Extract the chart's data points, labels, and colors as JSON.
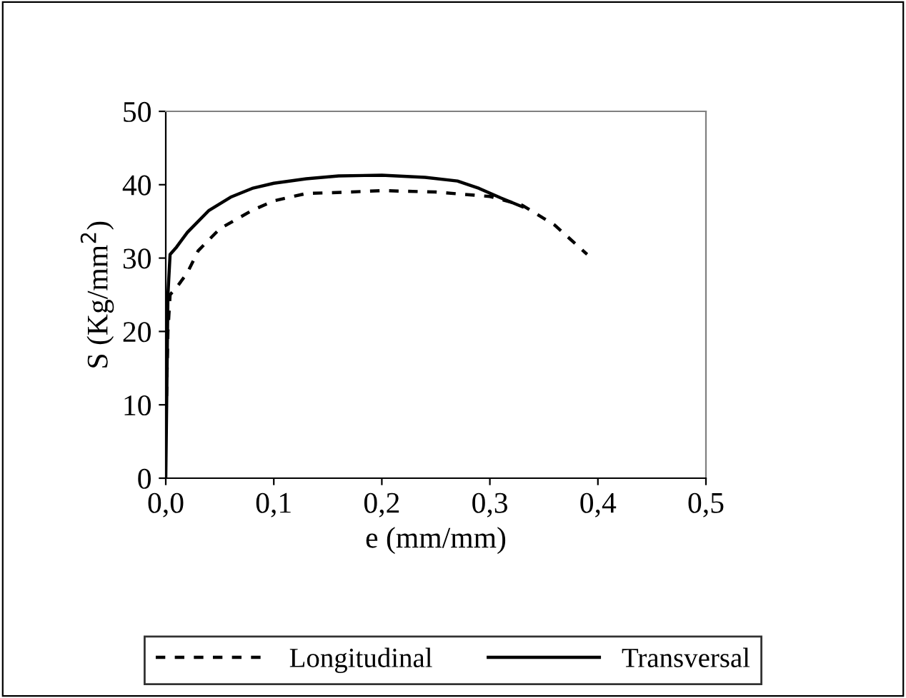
{
  "chart_data": {
    "type": "line",
    "xlabel": "e (mm/mm)",
    "ylabel": "S (Kg/mm$^{2}$)",
    "xlim": [
      0,
      0.5
    ],
    "ylim": [
      0,
      50
    ],
    "xticks": [
      {
        "value": 0,
        "label": "0,0"
      },
      {
        "value": 0.1,
        "label": "0,1"
      },
      {
        "value": 0.2,
        "label": "0,2"
      },
      {
        "value": 0.3,
        "label": "0,3"
      },
      {
        "value": 0.4,
        "label": "0,4"
      },
      {
        "value": 0.5,
        "label": "0,5"
      }
    ],
    "yticks": [
      0,
      10,
      20,
      30,
      40,
      50
    ],
    "grid": false,
    "legend": "bottom",
    "marker": "none",
    "series": [
      {
        "name": "Longitudinal",
        "color": "#000000",
        "line_style": "dashed",
        "x": [
          0,
          0.002,
          0.004,
          0.01,
          0.02,
          0.03,
          0.05,
          0.08,
          0.1,
          0.13,
          0.17,
          0.2,
          0.25,
          0.3,
          0.33,
          0.36,
          0.39
        ],
        "values": [
          6,
          20,
          25,
          26,
          28,
          31,
          34,
          36.5,
          37.8,
          38.8,
          39,
          39.2,
          39,
          38.4,
          37.2,
          34.5,
          30.5
        ]
      },
      {
        "name": "Transversal",
        "color": "#000000",
        "line_style": "solid",
        "x": [
          0,
          0.002,
          0.004,
          0.01,
          0.02,
          0.04,
          0.06,
          0.08,
          0.1,
          0.13,
          0.16,
          0.2,
          0.24,
          0.27,
          0.29,
          0.31,
          0.33
        ],
        "values": [
          0,
          25,
          30.5,
          31.5,
          33.5,
          36.5,
          38.3,
          39.5,
          40.2,
          40.8,
          41.2,
          41.3,
          41,
          40.5,
          39.5,
          38.2,
          37
        ]
      }
    ]
  }
}
